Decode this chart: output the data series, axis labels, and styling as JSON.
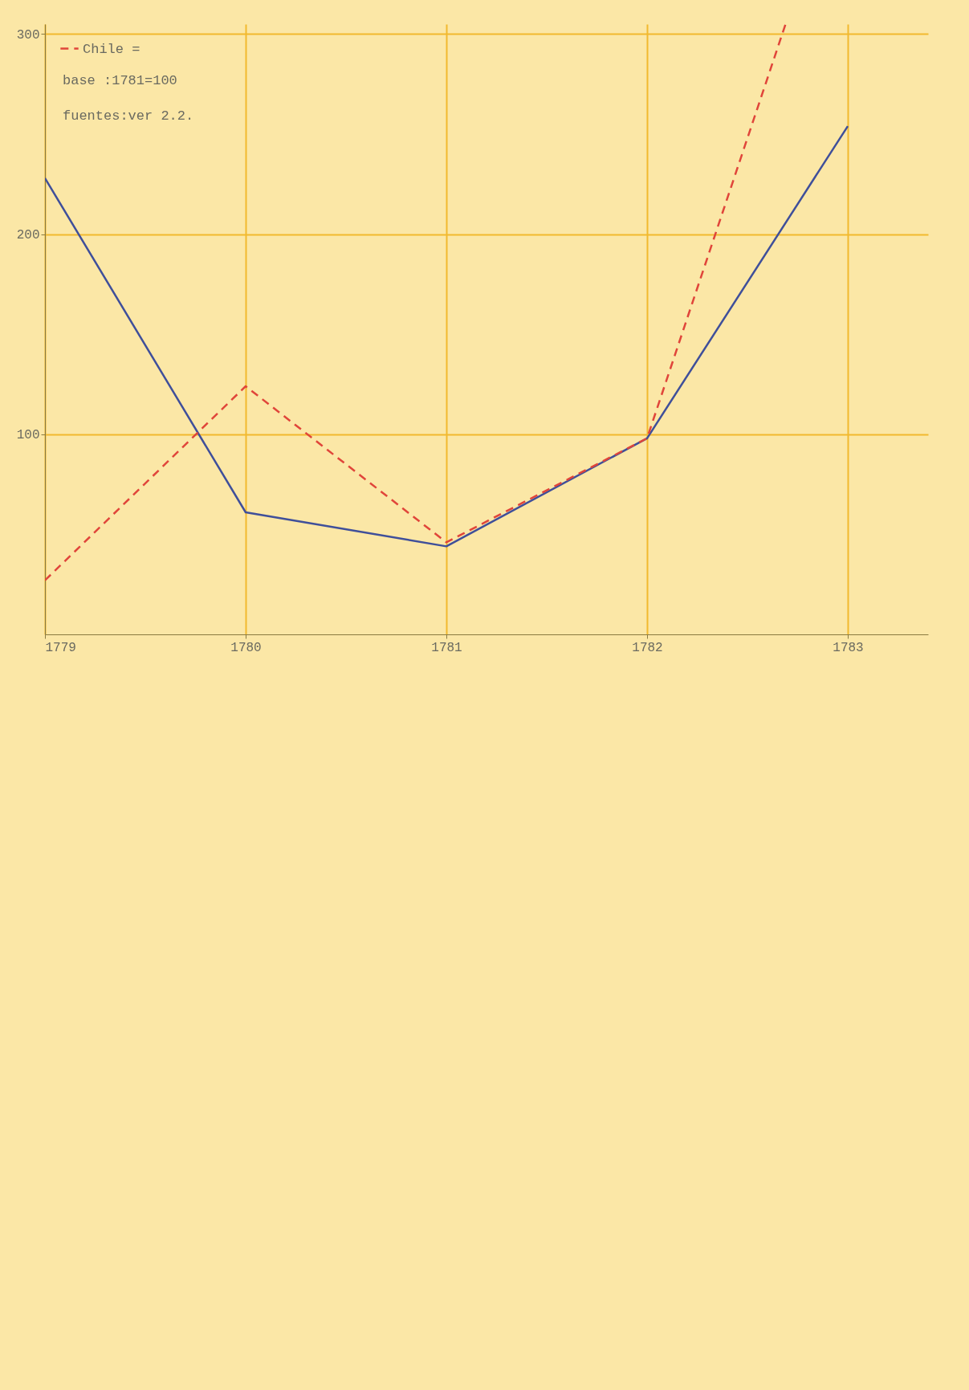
{
  "chart_data": {
    "type": "line",
    "xlim": [
      1779,
      1783.4
    ],
    "xticks": [
      1779,
      1780,
      1781,
      1782,
      1783
    ],
    "ylim": [
      0,
      305
    ],
    "yticks": [
      100,
      200,
      300
    ],
    "grid": true,
    "legend": "top left",
    "annotations": [
      "base :1781=100",
      "fuentes:ver 2.2."
    ],
    "series": [
      {
        "color": "#3f4f9a",
        "line_style": "solid",
        "x": [
          1779,
          1780,
          1781,
          1782,
          1783
        ],
        "values": [
          228,
          61,
          44,
          98,
          254
        ]
      },
      {
        "name": "Chile =",
        "color": "#e0453a",
        "line_style": "dashed",
        "x": [
          1779,
          1780,
          1781,
          1782,
          1782.69
        ],
        "values": [
          27,
          124,
          46,
          98,
          305
        ]
      }
    ]
  }
}
